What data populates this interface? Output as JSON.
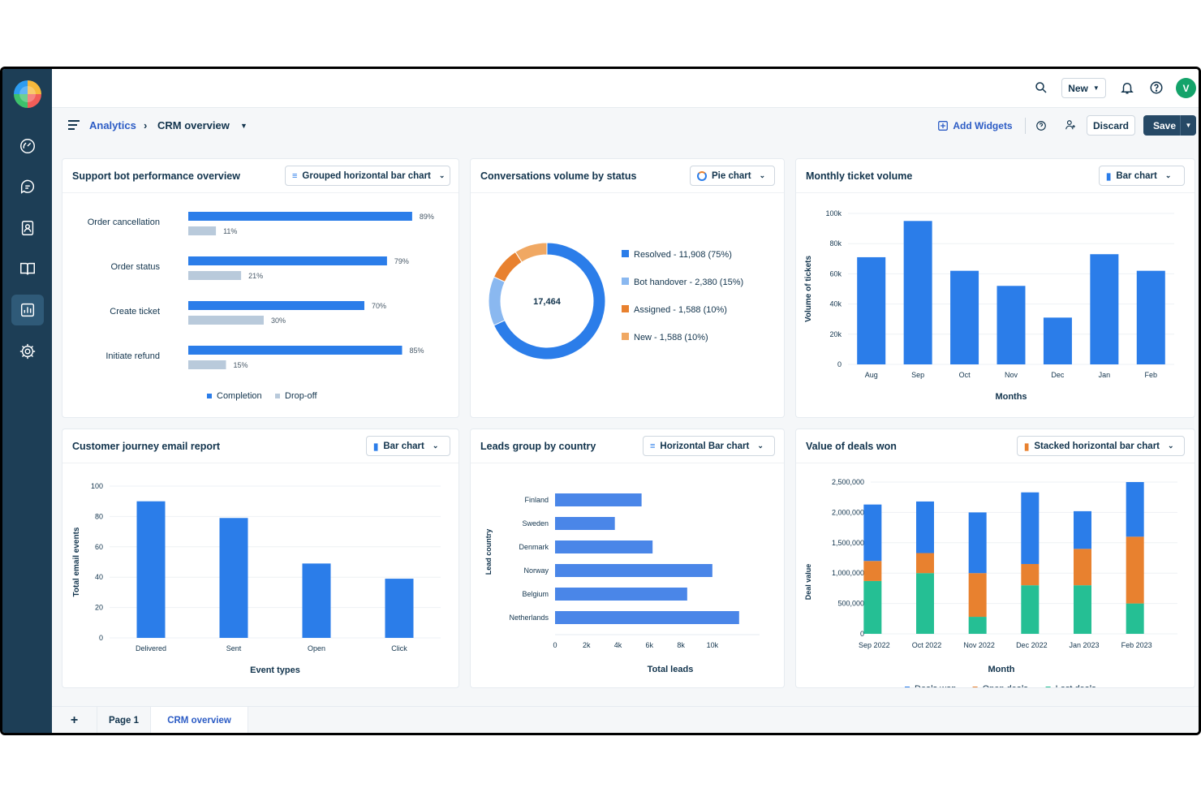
{
  "header": {
    "new_label": "New",
    "avatar_initial": "V"
  },
  "breadcrumb": {
    "root": "Analytics",
    "separator": "›",
    "current": "CRM overview"
  },
  "toolbar": {
    "add_widgets": "Add Widgets",
    "discard": "Discard",
    "save": "Save"
  },
  "widgets": {
    "w1": {
      "title": "Support bot performance overview",
      "chart_type": "Grouped horizontal bar chart"
    },
    "w2": {
      "title": "Conversations volume by status",
      "chart_type": "Pie chart"
    },
    "w3": {
      "title": "Monthly ticket volume",
      "chart_type": "Bar chart"
    },
    "w4": {
      "title": "Customer journey email report",
      "chart_type": "Bar chart"
    },
    "w5": {
      "title": "Leads group by country",
      "chart_type": "Horizontal Bar chart"
    },
    "w6": {
      "title": "Value of deals won",
      "chart_type": "Stacked horizontal bar chart"
    }
  },
  "tabs": {
    "add": "+",
    "page1": "Page 1",
    "crm": "CRM overview"
  },
  "colors": {
    "blue": "#2b7de9",
    "light_blue": "#8ab8f0",
    "grey_bar": "#b9cadb",
    "orange": "#e8812f",
    "peach": "#f0a863",
    "teal": "#25bf94",
    "dark": "#12344d"
  },
  "chart_data": [
    {
      "type": "bar",
      "orientation": "horizontal",
      "categories": [
        "Order cancellation",
        "Order status",
        "Create ticket",
        "Initiate refund"
      ],
      "series": [
        {
          "name": "Completion",
          "values": [
            89,
            79,
            70,
            85
          ],
          "labels": [
            "89%",
            "79%",
            "70%",
            "85%"
          ]
        },
        {
          "name": "Drop-off",
          "values": [
            11,
            21,
            30,
            15
          ],
          "labels": [
            "11%",
            "21%",
            "30%",
            "15%"
          ]
        }
      ],
      "legend": "bottom"
    },
    {
      "type": "pie",
      "donut": true,
      "center_label": "17,464",
      "slices": [
        {
          "name": "Resolved",
          "value": 11908,
          "label": "Resolved - 11,908 (75%)"
        },
        {
          "name": "Bot handover",
          "value": 2380,
          "label": "Bot handover - 2,380 (15%)"
        },
        {
          "name": "Assigned",
          "value": 1588,
          "label": "Assigned - 1,588 (10%)"
        },
        {
          "name": "New",
          "value": 1588,
          "label": "New - 1,588 (10%)"
        }
      ],
      "legend": "right"
    },
    {
      "type": "bar",
      "categories": [
        "Aug",
        "Sep",
        "Oct",
        "Nov",
        "Dec",
        "Jan",
        "Feb"
      ],
      "values": [
        71000,
        95000,
        62000,
        52000,
        31000,
        73000,
        62000
      ],
      "xlabel": "Months",
      "ylabel": "Volume of tickets",
      "ylim": [
        0,
        100000
      ],
      "yticks": [
        "0",
        "20k",
        "40k",
        "60k",
        "80k",
        "100k"
      ],
      "grid": true
    },
    {
      "type": "bar",
      "categories": [
        "Delivered",
        "Sent",
        "Open",
        "Click"
      ],
      "values": [
        90,
        79,
        49,
        39
      ],
      "xlabel": "Event types",
      "ylabel": "Total email events",
      "ylim": [
        0,
        100
      ],
      "yticks": [
        "0",
        "20",
        "40",
        "60",
        "80",
        "100"
      ],
      "grid": true
    },
    {
      "type": "bar",
      "orientation": "horizontal",
      "categories": [
        "Finland",
        "Sweden",
        "Denmark",
        "Norway",
        "Belgium",
        "Netherlands"
      ],
      "values": [
        5500,
        3800,
        6200,
        10000,
        8400,
        11700
      ],
      "xlabel": "Total leads",
      "ylabel": "Lead country",
      "xlim": [
        0,
        13000
      ],
      "xticks": [
        "0",
        "2k",
        "4k",
        "6k",
        "8k",
        "10k"
      ],
      "grid": true
    },
    {
      "type": "bar",
      "stacked": true,
      "categories": [
        "Sep 2022",
        "Oct 2022",
        "Nov 2022",
        "Dec 2022",
        "Jan 2023",
        "Feb 2023"
      ],
      "series": [
        {
          "name": "Lost deals",
          "values": [
            870000,
            1000000,
            280000,
            800000,
            800000,
            500000
          ]
        },
        {
          "name": "Open deals",
          "values": [
            330000,
            330000,
            720000,
            350000,
            600000,
            1100000
          ]
        },
        {
          "name": "Deals won",
          "values": [
            930000,
            850000,
            1000000,
            1180000,
            620000,
            900000
          ]
        }
      ],
      "legend_order": [
        "Deals won",
        "Open deals",
        "Lost deals"
      ],
      "xlabel": "Month",
      "ylabel": "Deal value",
      "ylim": [
        0,
        2500000
      ],
      "yticks": [
        "0",
        "500,000",
        "1,000,000",
        "1,500,000",
        "2,000,000",
        "2,500,000"
      ],
      "grid": true
    }
  ]
}
